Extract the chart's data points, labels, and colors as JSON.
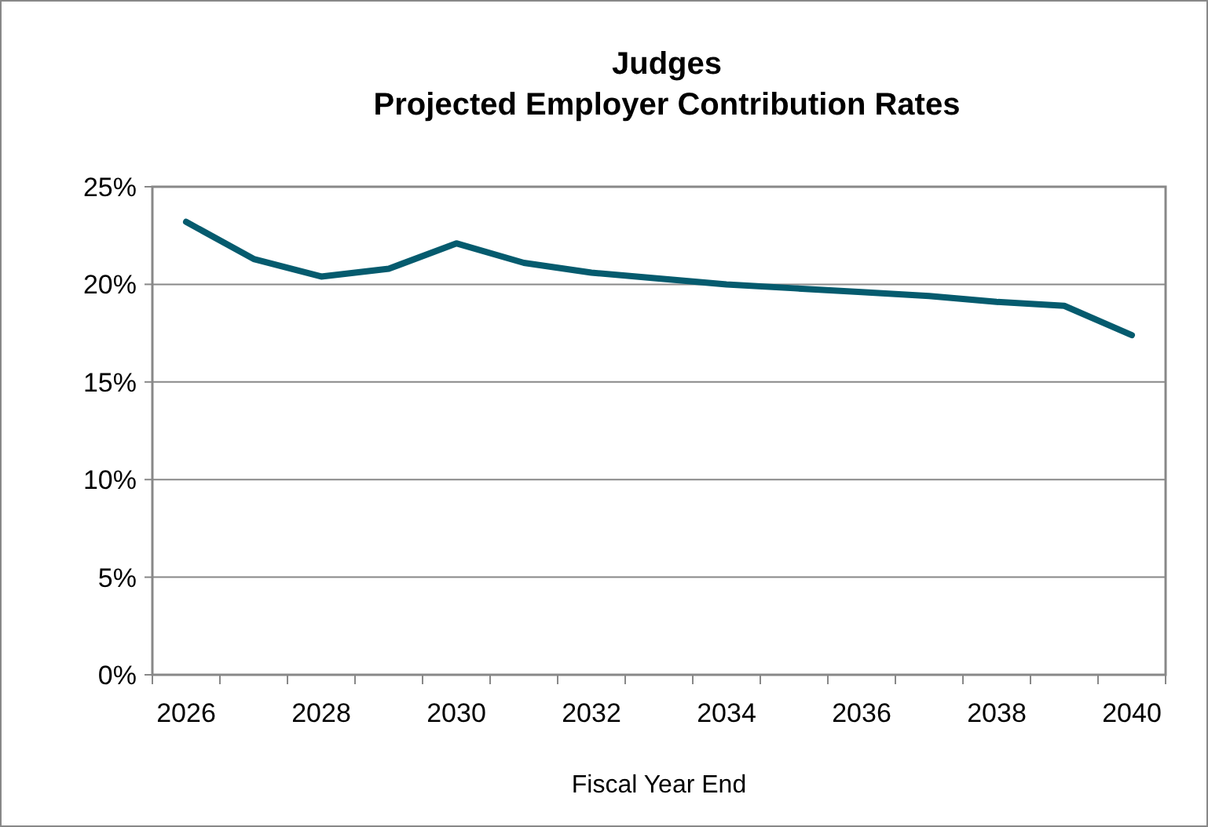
{
  "chart_data": {
    "type": "line",
    "title": "Judges\nProjected Employer Contribution Rates",
    "xlabel": "Fiscal Year End",
    "categories": [
      "2026",
      null,
      "2028",
      null,
      "2030",
      null,
      "2032",
      null,
      "2034",
      null,
      "2036",
      null,
      "2038",
      null,
      "2040"
    ],
    "series": [
      {
        "color": "#055b6e",
        "values": [
          23.2,
          21.3,
          20.4,
          20.8,
          22.1,
          21.1,
          20.6,
          20.3,
          20.0,
          19.8,
          19.6,
          19.4,
          19.1,
          18.9,
          17.4
        ]
      }
    ],
    "ylim": [
      0,
      25
    ],
    "yticks": [
      {
        "value": 0,
        "label": "0%"
      },
      {
        "value": 5,
        "label": "5%"
      },
      {
        "value": 10,
        "label": "10%"
      },
      {
        "value": 15,
        "label": "15%"
      },
      {
        "value": 20,
        "label": "20%"
      },
      {
        "value": 25,
        "label": "25%"
      }
    ],
    "grid": "y",
    "marker": "none",
    "line_style": "solid"
  }
}
